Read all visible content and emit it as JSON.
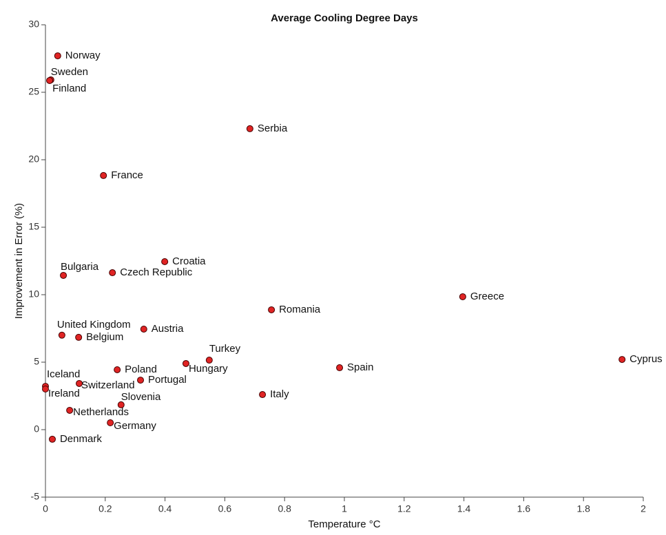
{
  "chart_data": {
    "type": "scatter",
    "title": "Average Cooling Degree Days",
    "x_label": "Temperature °C",
    "y_label": "Improvement in Error (%)",
    "labels": [
      "Norway",
      "Sweden",
      "Finland",
      "Serbia",
      "France",
      "Croatia",
      "Czech Republic",
      "Bulgaria",
      "Greece",
      "Romania",
      "Austria",
      "United Kingdom",
      "Belgium",
      "Turkey",
      "Cyprus",
      "Hungary",
      "Spain",
      "Poland",
      "Portugal",
      "Switzerland",
      "Iceland",
      "Ireland",
      "Italy",
      "Slovenia",
      "Netherlands",
      "Germany",
      "Denmark"
    ],
    "x": [
      0.041,
      0.018,
      0.014,
      0.684,
      0.194,
      0.399,
      0.224,
      0.06,
      1.396,
      0.756,
      0.329,
      0.055,
      0.111,
      0.548,
      1.929,
      0.47,
      0.984,
      0.24,
      0.318,
      0.113,
      0.0,
      0.0,
      0.726,
      0.253,
      0.081,
      0.217,
      0.023
    ],
    "values": [
      27.7,
      25.92,
      25.87,
      22.3,
      18.83,
      12.45,
      11.63,
      11.43,
      9.85,
      8.88,
      7.45,
      7.0,
      6.84,
      5.15,
      5.2,
      4.9,
      4.59,
      4.44,
      3.67,
      3.42,
      3.21,
      3.01,
      2.6,
      1.84,
      1.43,
      0.51,
      -0.71
    ],
    "color": "#e02424",
    "xlim": [
      0,
      2
    ],
    "xticks": [
      0,
      0.2,
      0.4,
      0.6,
      0.8,
      1,
      1.2,
      1.4,
      1.6,
      1.8,
      2
    ],
    "ylim": [
      -5,
      30
    ],
    "yticks": [
      -5,
      0,
      5,
      10,
      15,
      20,
      25,
      30
    ]
  }
}
